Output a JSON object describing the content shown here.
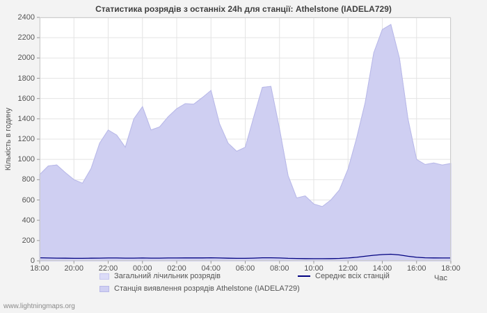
{
  "page": {
    "watermark": "www.lightningmaps.org"
  },
  "colors": {
    "page_background": "#f3f3f3",
    "plot_background": "#ffffff",
    "grid": "#e4e4e4",
    "plot_border": "#cccccc",
    "tick": "#999999",
    "text": "#545454",
    "area_total": "#dcdcf8",
    "area_station": "#cfcff2",
    "avg_line": "#000080"
  },
  "chart_data": {
    "type": "area",
    "title": "Статистика розрядів з останніх 24h для станції: Athelstone (IADELA729)",
    "xlabel": "Час",
    "ylabel": "Кількість в годину",
    "ylim": [
      0,
      2400
    ],
    "ytick_step": 200,
    "grid": {
      "on": true,
      "color": "#e4e4e4",
      "border": "#cccccc"
    },
    "legend_position": "bottom",
    "x_ticks": [
      "18:00",
      "20:00",
      "22:00",
      "00:00",
      "02:00",
      "04:00",
      "06:00",
      "08:00",
      "10:00",
      "12:00",
      "14:00",
      "16:00",
      "18:00"
    ],
    "x_unit_hours_from_start": true,
    "x": [
      0,
      0.5,
      1,
      1.5,
      2,
      2.5,
      3,
      3.5,
      4,
      4.5,
      5,
      5.5,
      6,
      6.5,
      7,
      7.5,
      8,
      8.5,
      9,
      9.5,
      10,
      10.5,
      11,
      11.5,
      12,
      12.5,
      13,
      13.5,
      14,
      14.5,
      15,
      15.5,
      16,
      16.5,
      17,
      17.5,
      18,
      18.5,
      19,
      19.5,
      20,
      20.5,
      21,
      21.5,
      22,
      22.5,
      23,
      23.5,
      24
    ],
    "series": [
      {
        "name": "Загальний лічильник розрядів",
        "type": "area",
        "color": "#dcdcf8",
        "edge": "#c6c6ef",
        "values": [
          850,
          935,
          945,
          870,
          800,
          765,
          910,
          1160,
          1290,
          1240,
          1120,
          1400,
          1520,
          1290,
          1320,
          1420,
          1500,
          1550,
          1545,
          1610,
          1680,
          1350,
          1160,
          1080,
          1120,
          1420,
          1710,
          1720,
          1300,
          840,
          620,
          640,
          560,
          535,
          600,
          700,
          905,
          1210,
          1560,
          2050,
          2280,
          2330,
          2000,
          1400,
          1000,
          950,
          965,
          945,
          960
        ]
      },
      {
        "name": "Станція виявлення розрядів Athelstone (IADELA729)",
        "type": "area",
        "color": "#cfcff2",
        "edge": "#b8b8e8",
        "values": [
          850,
          935,
          945,
          870,
          800,
          765,
          910,
          1160,
          1290,
          1240,
          1120,
          1400,
          1520,
          1290,
          1320,
          1420,
          1500,
          1550,
          1545,
          1610,
          1680,
          1350,
          1160,
          1080,
          1120,
          1420,
          1710,
          1720,
          1300,
          840,
          620,
          640,
          560,
          535,
          600,
          700,
          905,
          1210,
          1560,
          2050,
          2280,
          2330,
          2000,
          1400,
          1000,
          950,
          965,
          945,
          960
        ]
      },
      {
        "name": "Середнє всіх станцій",
        "type": "line",
        "color": "#000080",
        "values": [
          30,
          28,
          27,
          26,
          25,
          25,
          26,
          27,
          28,
          28,
          27,
          27,
          28,
          27,
          27,
          28,
          28,
          29,
          29,
          29,
          30,
          28,
          26,
          25,
          25,
          27,
          30,
          30,
          28,
          25,
          23,
          22,
          21,
          21,
          22,
          24,
          28,
          35,
          45,
          55,
          62,
          65,
          58,
          45,
          35,
          30,
          29,
          28,
          28
        ]
      }
    ]
  }
}
